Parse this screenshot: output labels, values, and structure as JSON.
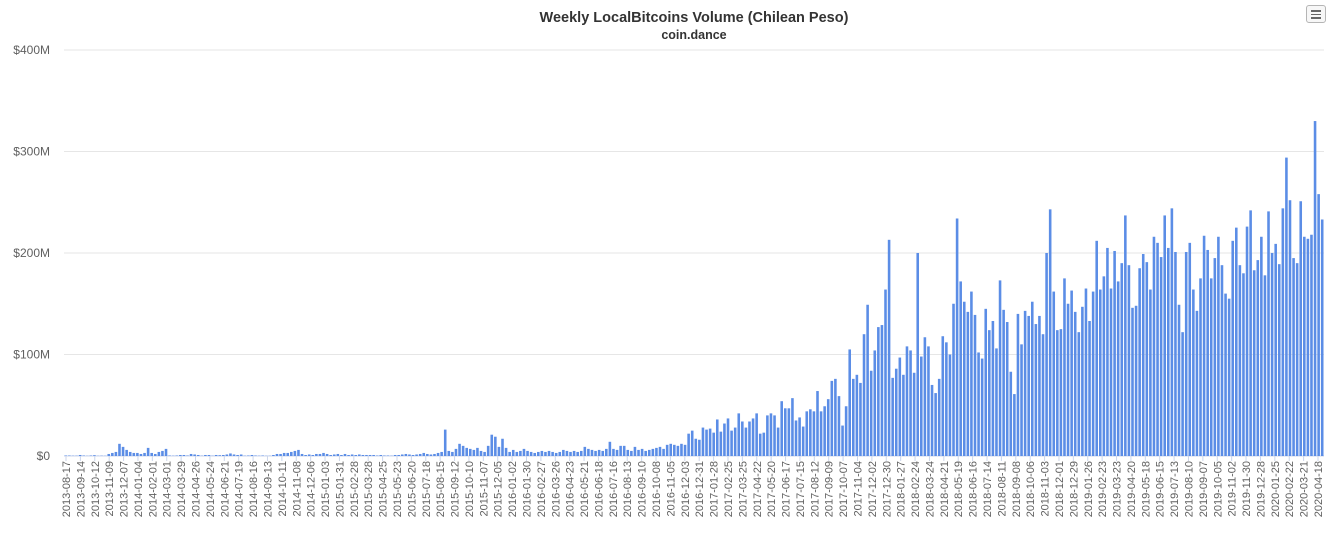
{
  "chart_data": {
    "type": "bar",
    "title": "Weekly LocalBitcoins Volume (Chilean Peso)",
    "subtitle": "coin.dance",
    "color": "#5b8de6",
    "grid": true,
    "ylim": [
      0,
      400000000
    ],
    "y_ticks": [
      {
        "value": 0,
        "label": "$0"
      },
      {
        "value": 100000000,
        "label": "$100M"
      },
      {
        "value": 200000000,
        "label": "$200M"
      },
      {
        "value": 300000000,
        "label": "$300M"
      },
      {
        "value": 400000000,
        "label": "$400M"
      }
    ],
    "x_ticks": [
      "2013-08-17",
      "2013-09-14",
      "2013-10-12",
      "2013-11-09",
      "2013-12-07",
      "2014-01-04",
      "2014-02-01",
      "2014-03-01",
      "2014-03-29",
      "2014-04-26",
      "2014-05-24",
      "2014-06-21",
      "2014-07-19",
      "2014-08-16",
      "2014-09-13",
      "2014-10-11",
      "2014-11-08",
      "2014-12-06",
      "2015-01-03",
      "2015-01-31",
      "2015-02-28",
      "2015-03-28",
      "2015-04-25",
      "2015-05-23",
      "2015-06-20",
      "2015-07-18",
      "2015-08-15",
      "2015-09-12",
      "2015-10-10",
      "2015-11-07",
      "2015-12-05",
      "2016-01-02",
      "2016-01-30",
      "2016-02-27",
      "2016-03-26",
      "2016-04-23",
      "2016-05-21",
      "2016-06-18",
      "2016-07-16",
      "2016-08-13",
      "2016-09-10",
      "2016-10-08",
      "2016-11-05",
      "2016-12-03",
      "2016-12-31",
      "2017-01-28",
      "2017-02-25",
      "2017-03-25",
      "2017-04-22",
      "2017-05-20",
      "2017-06-17",
      "2017-07-15",
      "2017-08-12",
      "2017-09-09",
      "2017-10-07",
      "2017-11-04",
      "2017-12-02",
      "2017-12-30",
      "2018-01-27",
      "2018-02-24",
      "2018-03-24",
      "2018-04-21",
      "2018-05-19",
      "2018-06-16",
      "2018-07-14",
      "2018-08-11",
      "2018-09-08",
      "2018-10-06",
      "2018-11-03",
      "2018-12-01",
      "2018-12-29",
      "2019-01-26",
      "2019-02-23",
      "2019-03-23",
      "2019-04-20",
      "2019-05-18",
      "2019-06-15",
      "2019-07-13",
      "2019-08-10",
      "2019-09-07",
      "2019-10-05",
      "2019-11-02",
      "2019-11-30",
      "2019-12-28",
      "2020-01-25",
      "2020-02-22",
      "2020-03-21",
      "2020-04-18"
    ],
    "values_millions": [
      0.5,
      0.5,
      0.3,
      0.3,
      1,
      0.5,
      0.2,
      0.5,
      0.8,
      0.2,
      0.3,
      0.2,
      2,
      3,
      4,
      12,
      9,
      6,
      4,
      3,
      3,
      2,
      3,
      8,
      3,
      2,
      4,
      5,
      7,
      0.5,
      0.3,
      0.5,
      1,
      1,
      0.5,
      2,
      1.5,
      1,
      0.3,
      1,
      1,
      0.3,
      1,
      0.8,
      1,
      1.5,
      2.5,
      1.5,
      1,
      1.5,
      0.3,
      0.5,
      1,
      0.5,
      0.3,
      0.5,
      0.2,
      0.2,
      1,
      2,
      2,
      3,
      3,
      4,
      5,
      6,
      2,
      1,
      1.5,
      1,
      2,
      2,
      3,
      2,
      1,
      1.5,
      2,
      1,
      2,
      1,
      1.5,
      1,
      1.5,
      1,
      1,
      1,
      1,
      0.5,
      1,
      0.5,
      0.5,
      0.3,
      1,
      1,
      1.5,
      2,
      1.5,
      1,
      1.5,
      2,
      3,
      2,
      1.5,
      2,
      3,
      4,
      26,
      5,
      4,
      7,
      12,
      10,
      8,
      7,
      6,
      8,
      5,
      4,
      10,
      21,
      19,
      9,
      17,
      8,
      4,
      6,
      4,
      5,
      7,
      5,
      4,
      3,
      4,
      5,
      4,
      5,
      4,
      3,
      4,
      6,
      5,
      4,
      5,
      4,
      5,
      9,
      7,
      6,
      5,
      6,
      5,
      7,
      14,
      7,
      6,
      10,
      10,
      6,
      5,
      9,
      6,
      7,
      5,
      6,
      7,
      8,
      9,
      7,
      11,
      12,
      11,
      10,
      12,
      11,
      22,
      25,
      17,
      16,
      28,
      26,
      27,
      23,
      36,
      24,
      32,
      37,
      25,
      28,
      42,
      34,
      28,
      34,
      37,
      42,
      22,
      23,
      40,
      42,
      40,
      28,
      54,
      47,
      47,
      57,
      35,
      38,
      29,
      44,
      46,
      44,
      64,
      44,
      49,
      56,
      74,
      76,
      59,
      30,
      49,
      105,
      76,
      80,
      72,
      120,
      149,
      84,
      104,
      127,
      129,
      164,
      213,
      77,
      86,
      97,
      80,
      108,
      104,
      82,
      200,
      98,
      117,
      108,
      70,
      62,
      76,
      118,
      112,
      100,
      150,
      234,
      172,
      152,
      142,
      162,
      139,
      102,
      96,
      145,
      124,
      133,
      106,
      173,
      144,
      132,
      83,
      61,
      140,
      110,
      143,
      138,
      152,
      130,
      138,
      120,
      200,
      243,
      162,
      124,
      125,
      175,
      150,
      163,
      142,
      122,
      147,
      165,
      133,
      162,
      212,
      164,
      177,
      205,
      165,
      202,
      172,
      190,
      237,
      188,
      146,
      148,
      185,
      199,
      191,
      164,
      216,
      210,
      196,
      237,
      205,
      244,
      201,
      149,
      122,
      201,
      210,
      164,
      143,
      175,
      217,
      203,
      175,
      195,
      216,
      188,
      160,
      155,
      212,
      225,
      188,
      180,
      226,
      242,
      183,
      193,
      216,
      178,
      241,
      200,
      209,
      189,
      244,
      294,
      252,
      195,
      190,
      251,
      216,
      214,
      218,
      330,
      258,
      233
    ]
  }
}
